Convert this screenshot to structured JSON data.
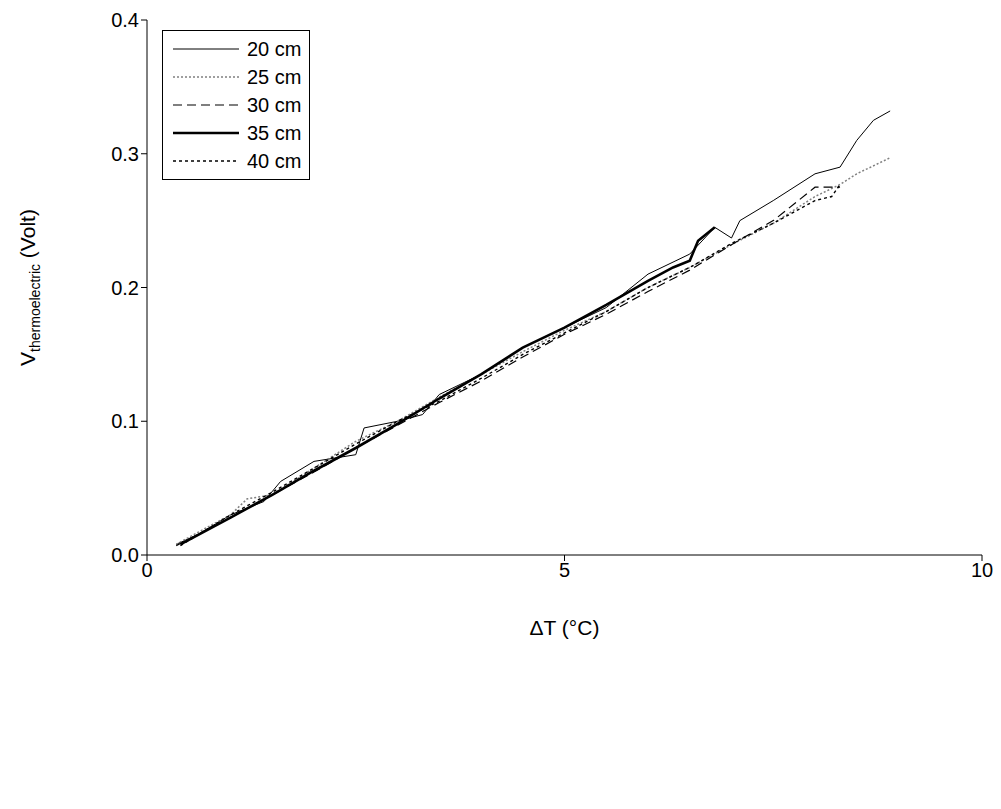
{
  "chart_data": {
    "type": "line",
    "x_label": "ΔT (°C)",
    "y_label": "Vthermoelectric (Volt)",
    "xlim": [
      0,
      10
    ],
    "xticks": [
      0,
      5,
      10
    ],
    "ylim": [
      0,
      0.4
    ],
    "yticks": [
      {
        "value": 0,
        "label": "0.0"
      },
      0.1,
      0.2,
      0.3,
      0.4
    ],
    "grid": false,
    "legend": "upper left",
    "series": [
      {
        "name": "20 cm",
        "color": "#000000",
        "line_style": "solid",
        "x": [
          0.35,
          0.6,
          1.0,
          1.4,
          1.6,
          2.0,
          2.5,
          2.6,
          3.0,
          3.3,
          3.5,
          4.0,
          4.5,
          5.0,
          5.5,
          6.0,
          6.5,
          6.8,
          7.0,
          7.1,
          7.5,
          8.0,
          8.3,
          8.5,
          8.7,
          8.9
        ],
        "values": [
          0.008,
          0.015,
          0.03,
          0.04,
          0.055,
          0.07,
          0.075,
          0.095,
          0.1,
          0.105,
          0.12,
          0.135,
          0.155,
          0.17,
          0.185,
          0.21,
          0.225,
          0.245,
          0.237,
          0.25,
          0.265,
          0.285,
          0.29,
          0.31,
          0.325,
          0.332
        ]
      },
      {
        "name": "25 cm",
        "color": "#808080",
        "line_style": "dotted",
        "x": [
          0.35,
          0.7,
          1.0,
          1.2,
          1.5,
          2.0,
          2.5,
          3.0,
          3.5,
          4.0,
          4.5,
          5.0,
          5.5,
          6.0,
          6.5,
          7.0,
          7.5,
          8.0,
          8.3,
          8.5,
          8.9
        ],
        "values": [
          0.008,
          0.02,
          0.03,
          0.042,
          0.045,
          0.065,
          0.085,
          0.1,
          0.118,
          0.135,
          0.152,
          0.168,
          0.182,
          0.2,
          0.215,
          0.232,
          0.248,
          0.268,
          0.277,
          0.285,
          0.297
        ]
      },
      {
        "name": "30 cm",
        "color": "#000000",
        "line_style": "dashed",
        "x": [
          0.35,
          1.0,
          1.5,
          2.0,
          2.5,
          3.0,
          3.5,
          4.0,
          4.5,
          5.0,
          5.5,
          6.0,
          6.5,
          7.0,
          7.5,
          7.8,
          8.0,
          8.3
        ],
        "values": [
          0.007,
          0.028,
          0.045,
          0.062,
          0.08,
          0.097,
          0.114,
          0.13,
          0.148,
          0.165,
          0.18,
          0.197,
          0.213,
          0.232,
          0.25,
          0.265,
          0.275,
          0.275
        ]
      },
      {
        "name": "35 cm",
        "color": "#000000",
        "line_style": "thick",
        "x": [
          0.4,
          1.0,
          1.5,
          2.0,
          2.5,
          3.0,
          3.5,
          4.0,
          4.5,
          5.0,
          5.5,
          6.0,
          6.3,
          6.5,
          6.6,
          6.8
        ],
        "values": [
          0.008,
          0.028,
          0.045,
          0.063,
          0.08,
          0.098,
          0.117,
          0.135,
          0.155,
          0.17,
          0.187,
          0.205,
          0.215,
          0.22,
          0.235,
          0.245
        ]
      },
      {
        "name": "40 cm",
        "color": "#000000",
        "line_style": "short_dash",
        "x": [
          0.4,
          1.0,
          1.5,
          2.0,
          2.5,
          3.0,
          3.5,
          4.0,
          4.5,
          5.0,
          5.5,
          6.0,
          6.5,
          7.0,
          7.5,
          8.0,
          8.2,
          8.3
        ],
        "values": [
          0.007,
          0.03,
          0.047,
          0.065,
          0.083,
          0.1,
          0.115,
          0.132,
          0.15,
          0.166,
          0.182,
          0.2,
          0.215,
          0.233,
          0.248,
          0.265,
          0.268,
          0.277
        ]
      }
    ]
  }
}
